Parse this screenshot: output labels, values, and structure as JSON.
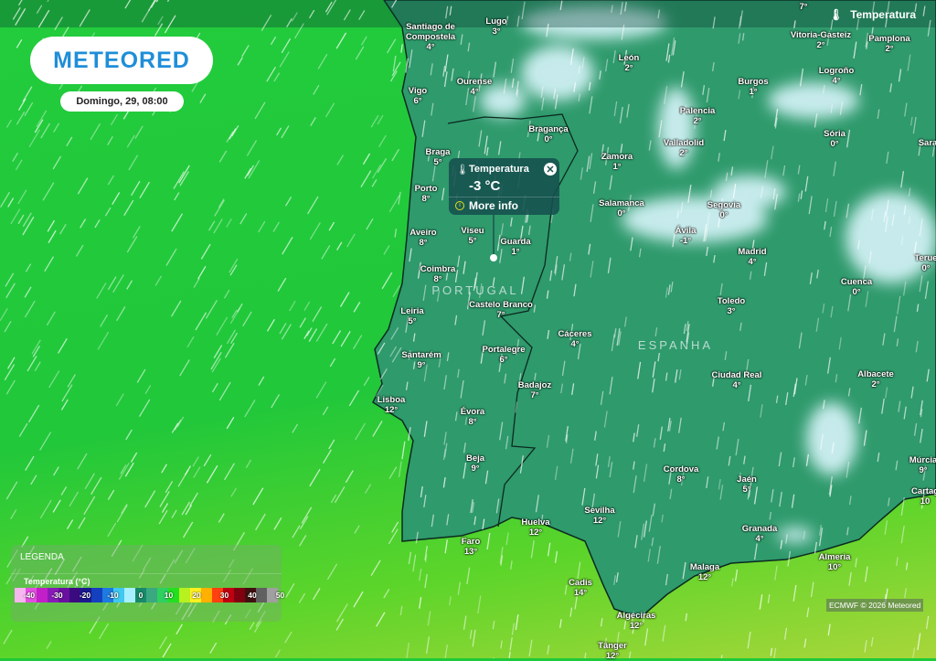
{
  "header": {
    "logo": "METEORED",
    "date": "Domingo, 29, 08:00",
    "layer": "Temperatura",
    "layer_icon": "thermometer-icon"
  },
  "popup": {
    "title": "Temperatura",
    "value": "-3 °C",
    "more": "More info",
    "close_icon": "close-icon",
    "info_icon": "info-icon"
  },
  "countries": [
    "PORTUGAL",
    "ESPANHA"
  ],
  "top_edge_temp": "7°",
  "cities": [
    {
      "name": "Santiago de",
      "name2": "Compostela",
      "temp": "4°"
    },
    {
      "name": "Lugo",
      "temp": "3°"
    },
    {
      "name": "Vigo",
      "temp": "6°"
    },
    {
      "name": "Ourense",
      "temp": "4°"
    },
    {
      "name": "León",
      "temp": "2°"
    },
    {
      "name": "Burgos",
      "temp": "1°"
    },
    {
      "name": "Vitoria-Gasteiz",
      "temp": "2°"
    },
    {
      "name": "Pamplona",
      "temp": "2°"
    },
    {
      "name": "Logroño",
      "temp": "4°"
    },
    {
      "name": "Palencia",
      "temp": "2°"
    },
    {
      "name": "Bragança",
      "temp": "0°"
    },
    {
      "name": "Braga",
      "temp": "5°"
    },
    {
      "name": "Zamora",
      "temp": "1°"
    },
    {
      "name": "Valladolid",
      "temp": "2°"
    },
    {
      "name": "Sória",
      "temp": "0°"
    },
    {
      "name": "Sara",
      "temp": ""
    },
    {
      "name": "Porto",
      "temp": "8°"
    },
    {
      "name": "Salamanca",
      "temp": "0°"
    },
    {
      "name": "Segovia",
      "temp": "0°"
    },
    {
      "name": "Ávila",
      "temp": "-1°"
    },
    {
      "name": "Madrid",
      "temp": "4°"
    },
    {
      "name": "Aveiro",
      "temp": "8°"
    },
    {
      "name": "Viseu",
      "temp": "5°"
    },
    {
      "name": "Guarda",
      "temp": "1°"
    },
    {
      "name": "Terue",
      "temp": "0°"
    },
    {
      "name": "Coimbra",
      "temp": "8°"
    },
    {
      "name": "Cuenca",
      "temp": "0°"
    },
    {
      "name": "Castelo Branco",
      "temp": "7°"
    },
    {
      "name": "Toledo",
      "temp": "3°"
    },
    {
      "name": "Leiria",
      "temp": "5°"
    },
    {
      "name": "Cáceres",
      "temp": "4°"
    },
    {
      "name": "Portalegre",
      "temp": "6°"
    },
    {
      "name": "Santarém",
      "temp": "9°"
    },
    {
      "name": "Ciudad Real",
      "temp": "4°"
    },
    {
      "name": "Albacete",
      "temp": "2°"
    },
    {
      "name": "Badajoz",
      "temp": "7°"
    },
    {
      "name": "Lisboa",
      "temp": "12°"
    },
    {
      "name": "Évora",
      "temp": "8°"
    },
    {
      "name": "Beja",
      "temp": "9°"
    },
    {
      "name": "Múrcia",
      "temp": "9°"
    },
    {
      "name": "Cordova",
      "temp": "8°"
    },
    {
      "name": "Jaén",
      "temp": "5°"
    },
    {
      "name": "Cartag",
      "temp": "10"
    },
    {
      "name": "Sevilha",
      "temp": "12°"
    },
    {
      "name": "Huelva",
      "temp": "12°"
    },
    {
      "name": "Granada",
      "temp": "4°"
    },
    {
      "name": "Faro",
      "temp": "13°"
    },
    {
      "name": "Almeria",
      "temp": "10°"
    },
    {
      "name": "Malaga",
      "temp": "12°"
    },
    {
      "name": "Cadis",
      "temp": "14°"
    },
    {
      "name": "Algeciras",
      "temp": "12°"
    },
    {
      "name": "Tânger",
      "temp": "12°"
    }
  ],
  "legend": {
    "title": "LEGENDA",
    "unit_label": "Temperatura (°C)",
    "ticks": [
      "-40",
      "-30",
      "-20",
      "-10",
      "0",
      "10",
      "20",
      "30",
      "40",
      "50"
    ],
    "colors": [
      "#f6b6f0",
      "#e24fe0",
      "#c21fc8",
      "#8a1ab8",
      "#6a10a0",
      "#3a0a80",
      "#1a1a90",
      "#1440c0",
      "#1c7ae0",
      "#40c8f0",
      "#a8f0ff",
      "#178a6a",
      "#3aa880",
      "#2ed060",
      "#22e020",
      "#b8f020",
      "#fff020",
      "#ffb000",
      "#ff4010",
      "#c00010",
      "#800010",
      "#401010",
      "#606060",
      "#a0a0a0"
    ]
  },
  "credit": "ECMWF © 2026 Meteored",
  "colors": {
    "land": "#2f9a6c",
    "sea": "#22cc3c",
    "snow": "#d8f4fa",
    "logo": "#1f8ed8"
  }
}
